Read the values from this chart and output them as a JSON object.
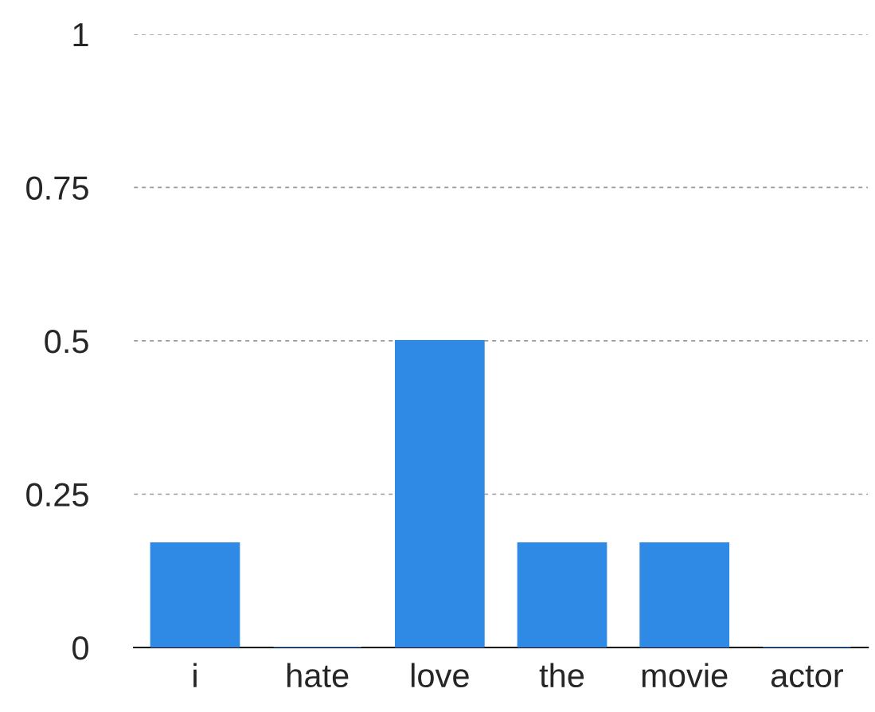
{
  "chart_data": {
    "type": "bar",
    "categories": [
      "i",
      "hate",
      "love",
      "the",
      "movie",
      "actor"
    ],
    "values": [
      0.17,
      0,
      0.5,
      0.17,
      0.17,
      0
    ],
    "color": "#2f8ae6",
    "ylim": [
      0,
      1
    ],
    "yticks": [
      0,
      0.25,
      0.5,
      0.75,
      1
    ],
    "grid": "y"
  }
}
